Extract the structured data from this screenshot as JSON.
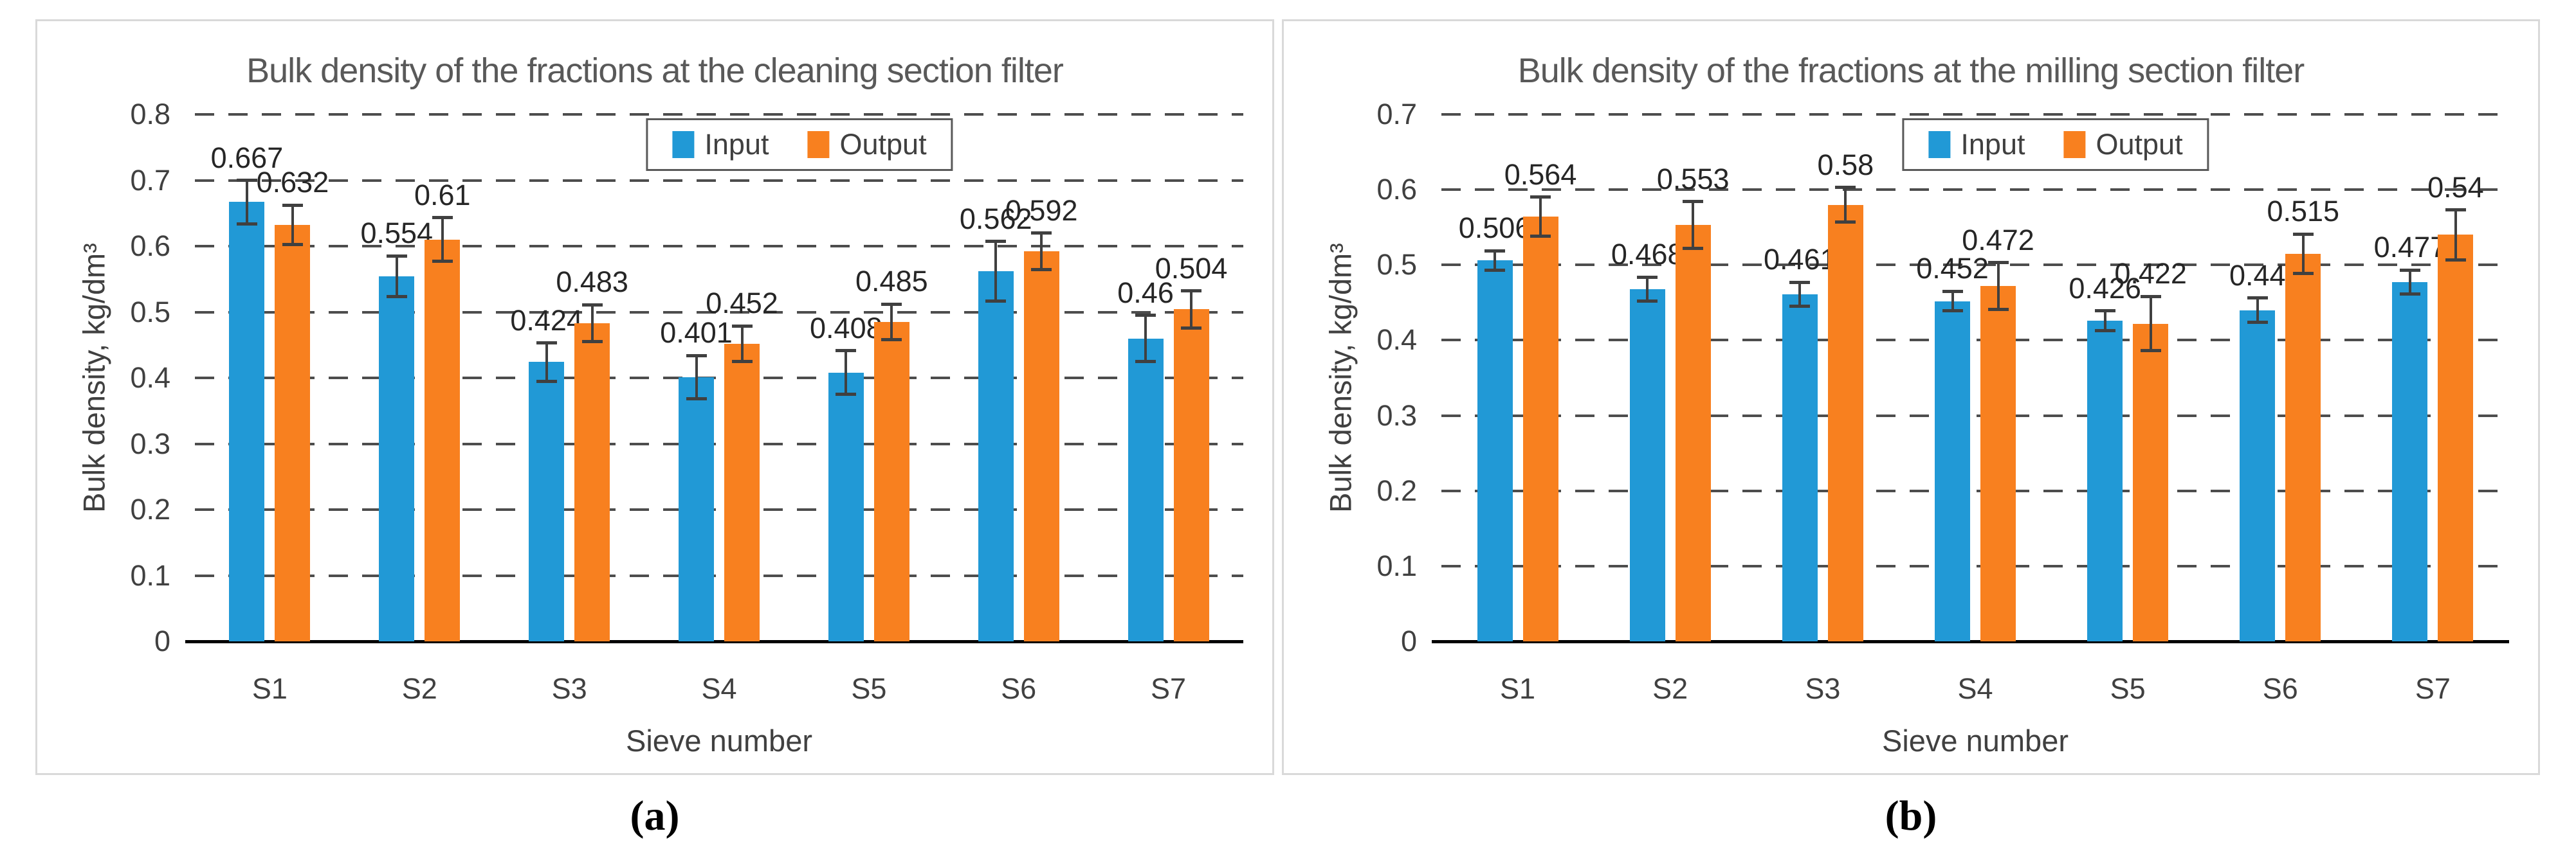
{
  "figure": {
    "background": "#ffffff",
    "panel_border_color": "#d9d9d9"
  },
  "chart_data": [
    {
      "type": "bar",
      "panel": "a",
      "caption": "(a)",
      "title": "Bulk density of the fractions at the cleaning section filter",
      "xlabel": "Sieve number",
      "ylabel": "Bulk density, kg/dm³",
      "categories": [
        "S1",
        "S2",
        "S3",
        "S4",
        "S5",
        "S6",
        "S7"
      ],
      "series": [
        {
          "name": "Input",
          "color": "#2199d6",
          "values": [
            0.667,
            0.554,
            0.424,
            0.401,
            0.408,
            0.562,
            0.46
          ],
          "errors": [
            0.033,
            0.031,
            0.029,
            0.033,
            0.033,
            0.045,
            0.035
          ]
        },
        {
          "name": "Output",
          "color": "#f8801f",
          "values": [
            0.632,
            0.61,
            0.483,
            0.452,
            0.485,
            0.592,
            0.504
          ],
          "errors": [
            0.03,
            0.033,
            0.028,
            0.027,
            0.027,
            0.028,
            0.028
          ]
        }
      ],
      "ylim": [
        0,
        0.8
      ],
      "yticks": [
        "0",
        "0.1",
        "0.2",
        "0.3",
        "0.4",
        "0.5",
        "0.6",
        "0.7",
        "0.8"
      ],
      "grid": "horizontal-dashed",
      "legend": {
        "position": "top-center",
        "labels": [
          "Input",
          "Output"
        ]
      }
    },
    {
      "type": "bar",
      "panel": "b",
      "caption": "(b)",
      "title": "Bulk density of the fractions at the milling section filter",
      "xlabel": "Sieve number",
      "ylabel": "Bulk density, kg/dm³",
      "categories": [
        "S1",
        "S2",
        "S3",
        "S4",
        "S5",
        "S6",
        "S7"
      ],
      "series": [
        {
          "name": "Input",
          "color": "#2199d6",
          "values": [
            0.506,
            0.468,
            0.461,
            0.452,
            0.426,
            0.44,
            0.477
          ],
          "errors": [
            0.013,
            0.016,
            0.016,
            0.013,
            0.013,
            0.016,
            0.016
          ]
        },
        {
          "name": "Output",
          "color": "#f8801f",
          "values": [
            0.564,
            0.553,
            0.58,
            0.472,
            0.422,
            0.515,
            0.54
          ],
          "errors": [
            0.026,
            0.031,
            0.023,
            0.031,
            0.036,
            0.026,
            0.033
          ]
        }
      ],
      "ylim": [
        0,
        0.7
      ],
      "yticks": [
        "0",
        "0.1",
        "0.2",
        "0.3",
        "0.4",
        "0.5",
        "0.6",
        "0.7"
      ],
      "grid": "horizontal-dashed",
      "legend": {
        "position": "top-center",
        "labels": [
          "Input",
          "Output"
        ]
      }
    }
  ]
}
